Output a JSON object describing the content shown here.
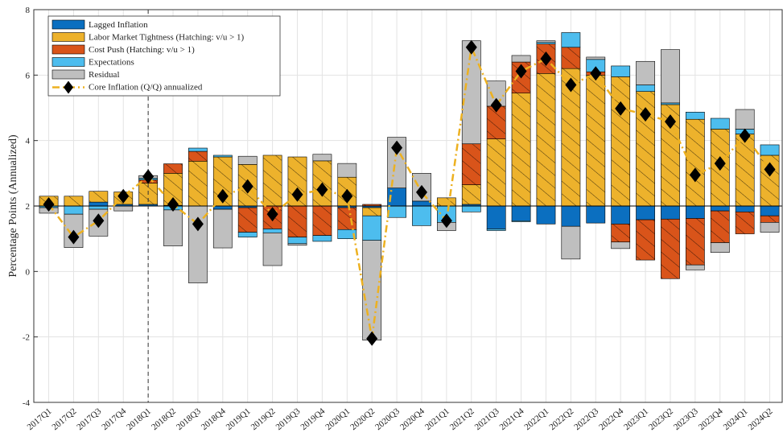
{
  "chart_data": {
    "type": "bar",
    "stacked": true,
    "base": 2,
    "ylabel": "Percentage Points (Annualized)",
    "categories": [
      "2017Q1",
      "2017Q2",
      "2017Q3",
      "2017Q4",
      "2018Q1",
      "2018Q2",
      "2018Q3",
      "2018Q4",
      "2019Q1",
      "2019Q2",
      "2019Q3",
      "2019Q4",
      "2020Q1",
      "2020Q2",
      "2020Q3",
      "2020Q4",
      "2021Q1",
      "2021Q2",
      "2021Q3",
      "2021Q4",
      "2022Q1",
      "2022Q2",
      "2022Q3",
      "2022Q4",
      "2023Q1",
      "2023Q2",
      "2023Q3",
      "2023Q4",
      "2024Q1",
      "2024Q2"
    ],
    "vline_at": "2018Q1",
    "ylim": [
      -4,
      8
    ],
    "yticks": [
      -4,
      -2,
      0,
      2,
      4,
      6,
      8
    ],
    "grid": true,
    "legend": "upper left",
    "series": [
      {
        "name": "Lagged Inflation",
        "type": "bar",
        "color": "#0b6fc0",
        "values": [
          0,
          0,
          0.12,
          0.05,
          0.05,
          0.02,
          0,
          -0.1,
          -0.05,
          0,
          0,
          0,
          -0.05,
          -0.05,
          0.55,
          0.15,
          0,
          0.05,
          -0.7,
          -0.45,
          -0.55,
          -0.62,
          -0.52,
          -0.55,
          -0.42,
          -0.4,
          -0.38,
          -0.15,
          -0.18,
          -0.3
        ]
      },
      {
        "name": "Labor Market Tightness (Hatching: v/u > 1)",
        "type": "bar",
        "color": "#edb22c",
        "hatched": true,
        "values": [
          0.3,
          0.3,
          0.33,
          0.38,
          0.65,
          0.98,
          1.37,
          1.5,
          1.27,
          1.55,
          1.5,
          1.38,
          0.88,
          -0.25,
          0,
          0,
          0.25,
          0.6,
          2.05,
          3.45,
          4.05,
          4.2,
          4.0,
          3.95,
          3.5,
          3.1,
          2.65,
          2.35,
          2.2,
          1.55
        ]
      },
      {
        "name": "Cost Push (Hatching: v/u > 1)",
        "type": "bar",
        "color": "#d9541a",
        "hatched": true,
        "values": [
          0,
          0,
          0,
          0,
          0.1,
          0.29,
          0.3,
          0,
          -0.75,
          -0.7,
          -0.95,
          -0.9,
          -0.67,
          0.05,
          0,
          0,
          0,
          1.25,
          1.0,
          0.95,
          0.9,
          0.65,
          0.1,
          -0.55,
          -1.23,
          -1.82,
          -1.42,
          -0.97,
          -0.67,
          -0.2
        ]
      },
      {
        "name": "Expectations",
        "type": "bar",
        "color": "#4dbdee",
        "values": [
          -0.05,
          -0.25,
          -0.1,
          0,
          0.05,
          -0.12,
          0.1,
          0.05,
          -0.15,
          -0.12,
          -0.2,
          -0.18,
          -0.28,
          -0.75,
          -0.35,
          -0.6,
          -0.5,
          -0.18,
          -0.05,
          -0.03,
          0.05,
          0.45,
          0.38,
          0.33,
          0.2,
          0.05,
          0.22,
          0.33,
          0.15,
          0.32
        ]
      },
      {
        "name": "Residual",
        "type": "bar",
        "color": "#bfbfbf",
        "values": [
          -0.17,
          -1.02,
          -0.82,
          -0.15,
          0.08,
          -1.1,
          -2.35,
          -1.18,
          0.25,
          -1.0,
          -0.05,
          0.2,
          0.42,
          -3.05,
          1.55,
          0.85,
          -0.25,
          3.15,
          0.77,
          0.2,
          0.05,
          -1.0,
          0.07,
          -0.2,
          0.72,
          1.63,
          -0.15,
          -0.3,
          0.6,
          -0.3
        ]
      },
      {
        "name": "Core Inflation (Q/Q) annualized",
        "type": "line",
        "color": "#edb120",
        "values": [
          2.05,
          1.05,
          1.55,
          2.3,
          2.9,
          2.05,
          1.45,
          2.3,
          2.6,
          1.75,
          2.35,
          2.5,
          2.3,
          -2.05,
          3.78,
          2.42,
          1.55,
          6.85,
          5.08,
          6.12,
          6.5,
          5.7,
          6.05,
          4.98,
          4.8,
          4.58,
          2.95,
          3.3,
          4.15,
          3.12
        ]
      }
    ]
  }
}
